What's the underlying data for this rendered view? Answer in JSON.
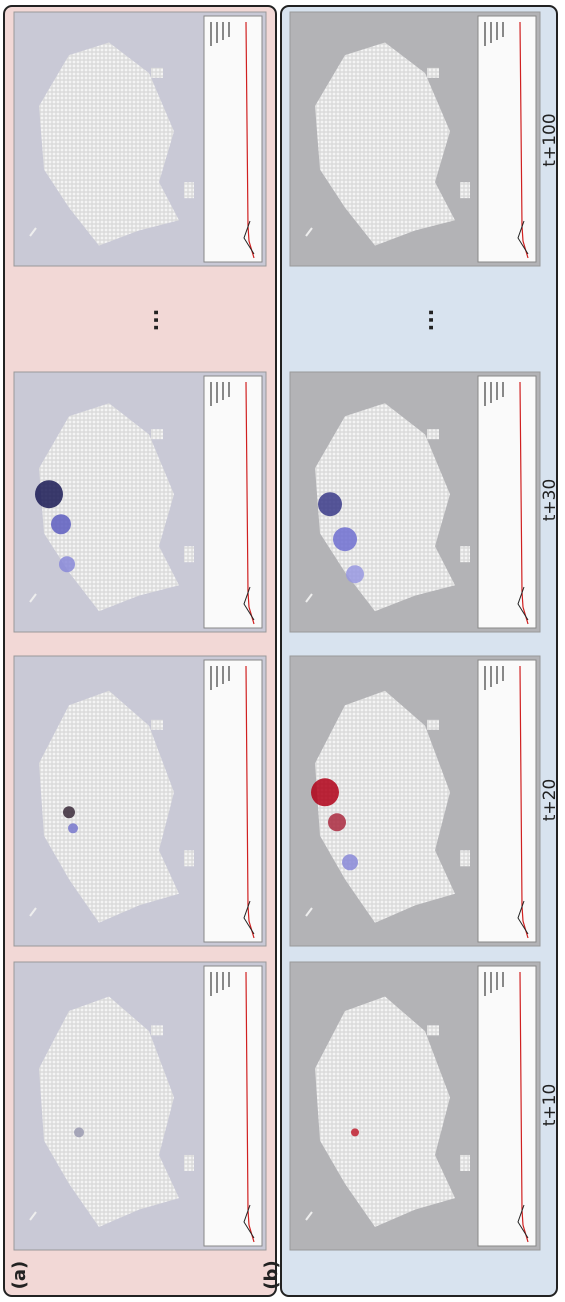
{
  "panels": [
    {
      "label": "(a)"
    },
    {
      "label": "(b)"
    }
  ],
  "time_labels": [
    "t+100",
    "t+30",
    "t+20",
    "t+10"
  ],
  "ellipsis": "..."
}
